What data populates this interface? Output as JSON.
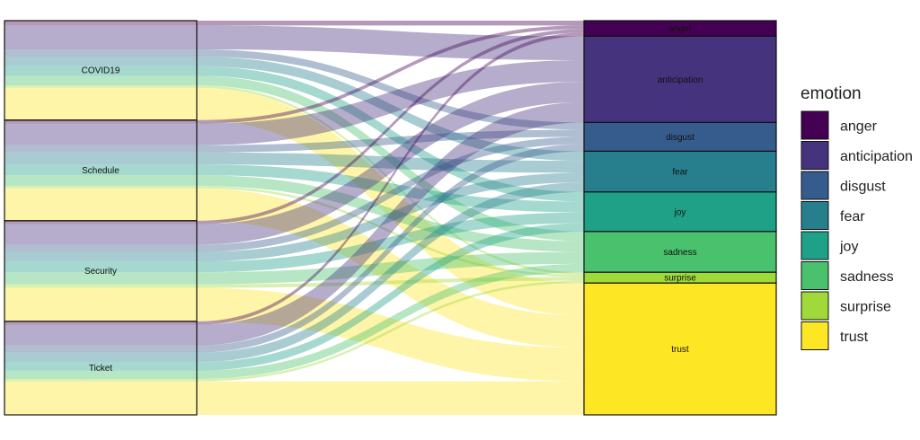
{
  "chart_data": {
    "type": "alluvial",
    "sources": [
      "COVID19",
      "Schedule",
      "Security",
      "Ticket"
    ],
    "targets": [
      "anger",
      "anticipation",
      "disgust",
      "fear",
      "joy",
      "sadness",
      "surprise",
      "trust"
    ],
    "flows": [
      [
        4,
        20,
        6,
        8,
        8,
        8,
        2,
        27
      ],
      [
        3,
        18,
        6,
        10,
        9,
        9,
        2,
        27
      ],
      [
        3,
        17,
        6,
        8,
        9,
        10,
        3,
        28
      ],
      [
        3,
        17,
        6,
        8,
        7,
        7,
        2,
        28
      ]
    ],
    "legend": {
      "title": "emotion",
      "items": [
        {
          "label": "anger",
          "color": "#440154"
        },
        {
          "label": "anticipation",
          "color": "#46337E"
        },
        {
          "label": "disgust",
          "color": "#365C8D"
        },
        {
          "label": "fear",
          "color": "#277F8E"
        },
        {
          "label": "joy",
          "color": "#1FA187"
        },
        {
          "label": "sadness",
          "color": "#4AC16D"
        },
        {
          "label": "surprise",
          "color": "#9FDA3A"
        },
        {
          "label": "trust",
          "color": "#FDE725"
        }
      ]
    },
    "flow_opacity": 0.4,
    "grid": false,
    "legend_position": "right"
  }
}
